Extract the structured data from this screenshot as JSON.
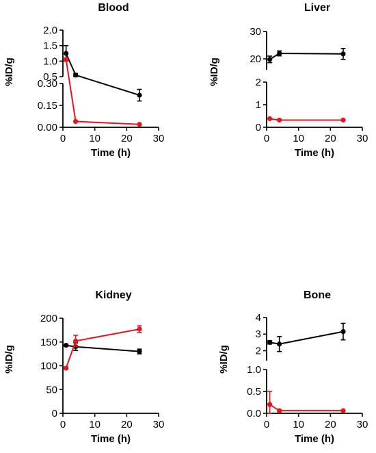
{
  "chart_data": [
    {
      "type": "line",
      "title": "Blood",
      "xlabel": "Time (h)",
      "ylabel": "%ID/g",
      "x_ticks": [
        "0",
        "10",
        "20",
        "30"
      ],
      "xlim": [
        0,
        30
      ],
      "broken_y_axis": true,
      "segments": [
        {
          "ylim": [
            0.5,
            2.0
          ],
          "ticks": [
            "0.5",
            "1.0",
            "1.5",
            "2.0"
          ]
        },
        {
          "ylim": [
            0.0,
            0.3
          ],
          "ticks": [
            "0.00",
            "0.15",
            "0.30"
          ]
        }
      ],
      "series": [
        {
          "color": "#000000",
          "x": [
            1,
            4,
            24
          ],
          "y": [
            1.25,
            0.55,
            0.22
          ],
          "err": [
            0.25,
            0.05,
            0.04
          ]
        },
        {
          "color": "#e8141b",
          "x": [
            1,
            4,
            24
          ],
          "y": [
            1.05,
            0.04,
            0.02
          ],
          "err": [
            0.05,
            0.005,
            0.003
          ]
        }
      ]
    },
    {
      "type": "line",
      "title": "Liver",
      "xlabel": "Time (h)",
      "ylabel": "%ID/g",
      "x_ticks": [
        "0",
        "10",
        "20",
        "30"
      ],
      "xlim": [
        0,
        30
      ],
      "broken_y_axis": true,
      "segments": [
        {
          "ylim": [
            16,
            30
          ],
          "ticks": [
            "20",
            "30"
          ]
        },
        {
          "ylim": [
            0,
            2
          ],
          "ticks": [
            "0",
            "1",
            "2"
          ]
        }
      ],
      "series": [
        {
          "color": "#000000",
          "x": [
            1,
            4,
            24
          ],
          "y": [
            19.8,
            22.0,
            21.8
          ],
          "err": [
            1.2,
            0.9,
            2.0
          ]
        },
        {
          "color": "#e8141b",
          "x": [
            1,
            4,
            24
          ],
          "y": [
            0.38,
            0.32,
            0.32
          ],
          "err": [
            0.02,
            0.02,
            0.02
          ]
        }
      ]
    },
    {
      "type": "line",
      "title": "Kidney",
      "xlabel": "Time (h)",
      "ylabel": "%ID/g",
      "x_ticks": [
        "0",
        "10",
        "20",
        "30"
      ],
      "xlim": [
        0,
        30
      ],
      "broken_y_axis": false,
      "segments": [
        {
          "ylim": [
            0,
            200
          ],
          "ticks": [
            "0",
            "50",
            "100",
            "150",
            "200"
          ]
        }
      ],
      "series": [
        {
          "color": "#000000",
          "x": [
            1,
            4,
            24
          ],
          "y": [
            143,
            140,
            130
          ],
          "err": [
            2,
            8,
            5
          ]
        },
        {
          "color": "#e8141b",
          "x": [
            1,
            4,
            24
          ],
          "y": [
            95,
            152,
            177
          ],
          "err": [
            2,
            12,
            7
          ]
        }
      ]
    },
    {
      "type": "line",
      "title": "Bone",
      "xlabel": "Time (h)",
      "ylabel": "%ID/g",
      "x_ticks": [
        "0",
        "10",
        "20",
        "30"
      ],
      "xlim": [
        0,
        30
      ],
      "broken_y_axis": true,
      "segments": [
        {
          "ylim": [
            1.4,
            4.0
          ],
          "ticks": [
            "2",
            "3",
            "4"
          ]
        },
        {
          "ylim": [
            0.0,
            1.0
          ],
          "ticks": [
            "0.0",
            "0.5",
            "1.0"
          ]
        }
      ],
      "series": [
        {
          "color": "#000000",
          "x": [
            1,
            4,
            24
          ],
          "y": [
            2.5,
            2.4,
            3.15
          ],
          "err": [
            0.1,
            0.45,
            0.5
          ]
        },
        {
          "color": "#e8141b",
          "x": [
            1,
            4,
            24
          ],
          "y": [
            0.2,
            0.06,
            0.06
          ],
          "err": [
            0.3,
            0.02,
            0.01
          ]
        }
      ]
    }
  ]
}
